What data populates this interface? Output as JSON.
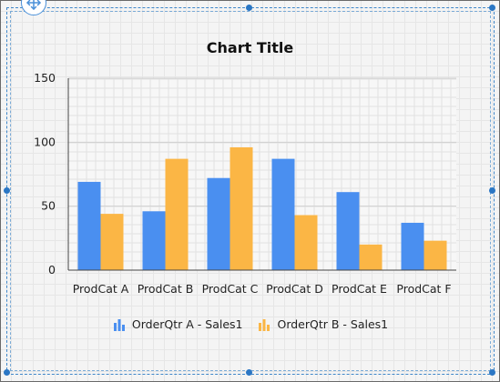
{
  "chart_data": {
    "type": "bar",
    "title": "Chart Title",
    "xlabel": "",
    "ylabel": "",
    "ylim": [
      0,
      150
    ],
    "yticks": [
      0,
      50,
      100,
      150
    ],
    "grid": true,
    "legend_position": "bottom",
    "categories": [
      "ProdCat A",
      "ProdCat B",
      "ProdCat C",
      "ProdCat D",
      "ProdCat E",
      "ProdCat F"
    ],
    "series": [
      {
        "name": "OrderQtr A - Sales1",
        "color": "#4a8ff0",
        "values": [
          69,
          46,
          72,
          87,
          61,
          37
        ]
      },
      {
        "name": "OrderQtr B - Sales1",
        "color": "#fbb645",
        "values": [
          44,
          87,
          96,
          43,
          20,
          23
        ]
      }
    ]
  },
  "icons": {
    "move_handle": "move-arrows-icon",
    "legend_series": "bar-chart-icon"
  }
}
